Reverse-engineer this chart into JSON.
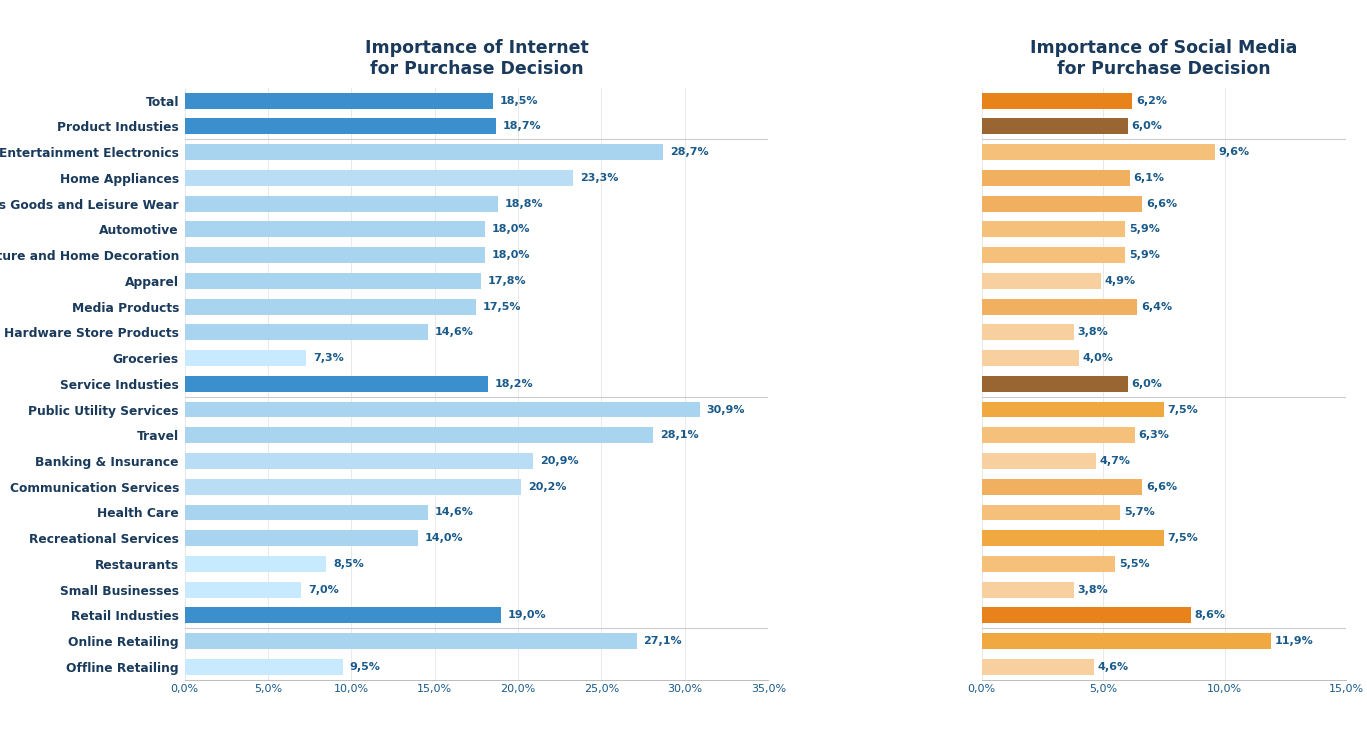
{
  "categories": [
    "Total",
    "Product Industies",
    "Entertainment Electronics",
    "Home Appliances",
    "Sports Goods and Leisure Wear",
    "Automotive",
    "Furniture and Home Decoration",
    "Apparel",
    "Media Products",
    "Hardware Store Products",
    "Groceries",
    "Service Industies",
    "Public Utility Services",
    "Travel",
    "Banking & Insurance",
    "Communication Services",
    "Health Care",
    "Recreational Services",
    "Restaurants",
    "Small Businesses",
    "Retail Industies",
    "Online Retailing",
    "Offline Retailing"
  ],
  "internet_values": [
    18.5,
    18.7,
    28.7,
    23.3,
    18.8,
    18.0,
    18.0,
    17.8,
    17.5,
    14.6,
    7.3,
    18.2,
    30.9,
    28.1,
    20.9,
    20.2,
    14.6,
    14.0,
    8.5,
    7.0,
    19.0,
    27.1,
    9.5
  ],
  "social_values": [
    6.2,
    6.0,
    9.6,
    6.1,
    6.6,
    5.9,
    5.9,
    4.9,
    6.4,
    3.8,
    4.0,
    6.0,
    7.5,
    6.3,
    4.7,
    6.6,
    5.7,
    7.5,
    5.5,
    3.8,
    8.6,
    11.9,
    4.6
  ],
  "internet_labels": [
    "18,5%",
    "18,7%",
    "28,7%",
    "23,3%",
    "18,8%",
    "18,0%",
    "18,0%",
    "17,8%",
    "17,5%",
    "14,6%",
    "7,3%",
    "18,2%",
    "30,9%",
    "28,1%",
    "20,9%",
    "20,2%",
    "14,6%",
    "14,0%",
    "8,5%",
    "7,0%",
    "19,0%",
    "27,1%",
    "9,5%"
  ],
  "social_labels": [
    "6,2%",
    "6,0%",
    "9,6%",
    "6,1%",
    "6,6%",
    "5,9%",
    "5,9%",
    "4,9%",
    "6,4%",
    "3,8%",
    "4,0%",
    "6,0%",
    "7,5%",
    "6,3%",
    "4,7%",
    "6,6%",
    "5,7%",
    "7,5%",
    "5,5%",
    "3,8%",
    "8,6%",
    "11,9%",
    "4,6%"
  ],
  "internet_colors": [
    "#3b8fcc",
    "#3b8fcc",
    "#a8d4f0",
    "#b8ddf5",
    "#a8d4f0",
    "#a8d4f0",
    "#a8d4f0",
    "#a8d4f0",
    "#a8d4f0",
    "#a8d4f0",
    "#c8eaff",
    "#3b8fcc",
    "#a8d4f0",
    "#a8d4f0",
    "#b8ddf5",
    "#b8ddf5",
    "#a8d4f0",
    "#a8d4f0",
    "#c8eaff",
    "#c8eaff",
    "#3b8fcc",
    "#a8d4f0",
    "#c8eaff"
  ],
  "social_colors": [
    "#E8821A",
    "#996633",
    "#F5C07A",
    "#F0B060",
    "#F0B060",
    "#F5C07A",
    "#F5C07A",
    "#F8D0A0",
    "#F0B060",
    "#F8D0A0",
    "#F8D0A0",
    "#996633",
    "#F0A840",
    "#F5C07A",
    "#F8D0A0",
    "#F0B060",
    "#F5C07A",
    "#F0A840",
    "#F5C07A",
    "#F8D0A0",
    "#E8821A",
    "#F0A840",
    "#F8D0A0"
  ],
  "internet_title": "Importance of Internet\nfor Purchase Decision",
  "social_title": "Importance of Social Media\nfor Purchase Decision",
  "internet_xticks": [
    0,
    5,
    10,
    15,
    20,
    25,
    30,
    35
  ],
  "social_xticks": [
    0,
    5,
    10,
    15
  ],
  "internet_xtick_labels": [
    "0,0%",
    "5,0%",
    "10,0%",
    "15,0%",
    "20,0%",
    "25,0%",
    "30,0%",
    "35,0%"
  ],
  "social_xtick_labels": [
    "0,0%",
    "5,0%",
    "10,0%",
    "15,0%"
  ],
  "title_color": "#1a3a5c",
  "label_color": "#1a5a8a",
  "separator_rows": [
    1,
    11,
    20
  ]
}
